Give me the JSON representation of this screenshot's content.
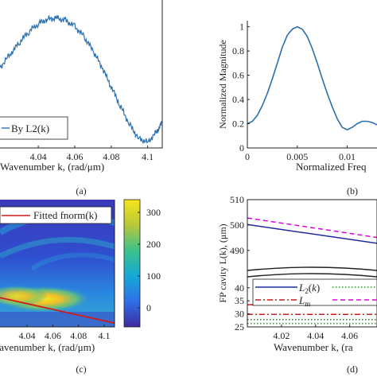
{
  "chart_data": [
    {
      "panel": "(a)",
      "type": "line",
      "xlabel": "Wavenumber k, (rad/μm)",
      "xticks": [
        "4.04",
        "4.06",
        "4.08",
        "4.1"
      ],
      "xlim": [
        4.019,
        4.108
      ],
      "ylim": [
        -1.05,
        1.05
      ],
      "legend": "By L2(k)",
      "legend_position": "bottom-left",
      "series_color": "#2a6fb0",
      "x": [
        4.019,
        4.025,
        4.03,
        4.035,
        4.04,
        4.045,
        4.05,
        4.055,
        4.06,
        4.065,
        4.07,
        4.075,
        4.08,
        4.085,
        4.09,
        4.095,
        4.1,
        4.105,
        4.108
      ],
      "y": [
        0.2,
        0.42,
        0.6,
        0.76,
        0.88,
        0.95,
        0.97,
        0.93,
        0.84,
        0.68,
        0.46,
        0.2,
        -0.1,
        -0.4,
        -0.68,
        -0.9,
        -0.96,
        -0.8,
        -0.65
      ]
    },
    {
      "panel": "(b)",
      "type": "line",
      "ylabel": "Normalized Magnitude",
      "xlabel": "Normalized Freq",
      "xticks": [
        "0",
        "0.005",
        "0.01"
      ],
      "yticks": [
        "0",
        "0.2",
        "0.4",
        "0.6",
        "0.8",
        "1"
      ],
      "xlim": [
        0,
        0.0137
      ],
      "ylim": [
        0,
        1.05
      ],
      "series_color": "#2a6fb0",
      "x": [
        0,
        0.0005,
        0.001,
        0.0015,
        0.002,
        0.0025,
        0.003,
        0.0035,
        0.004,
        0.0045,
        0.005,
        0.0055,
        0.006,
        0.0065,
        0.007,
        0.0075,
        0.008,
        0.0085,
        0.009,
        0.0095,
        0.01,
        0.0105,
        0.011,
        0.0115,
        0.012,
        0.0125,
        0.013,
        0.0137
      ],
      "y": [
        0.2,
        0.22,
        0.27,
        0.35,
        0.45,
        0.57,
        0.7,
        0.83,
        0.93,
        0.98,
        1.0,
        0.98,
        0.92,
        0.82,
        0.7,
        0.57,
        0.45,
        0.34,
        0.24,
        0.17,
        0.15,
        0.17,
        0.2,
        0.22,
        0.22,
        0.21,
        0.19,
        0.2
      ]
    },
    {
      "panel": "(c)",
      "type": "heatmap",
      "xlabel": "Wavenumber k, (rad/μm)",
      "xticks": [
        "4.04",
        "4.06",
        "4.08",
        "4.1"
      ],
      "xlim": [
        4.019,
        4.108
      ],
      "colorbar_ticks": [
        "300",
        "200",
        "100",
        "0"
      ],
      "colorbar_range": [
        -60,
        340
      ],
      "legend": "Fitted fnorm(k)",
      "line_color": "#d11a1a",
      "fitted_line": {
        "x": [
          4.019,
          4.108
        ],
        "y_fraction": [
          0.77,
          0.97
        ]
      }
    },
    {
      "panel": "(d)",
      "type": "line",
      "ylabel": "FP cavity L(k), (μm)",
      "xlabel": "Wavenumber k, (ra",
      "xticks": [
        "4.02",
        "4.04",
        "4.06"
      ],
      "yticks_upper": [
        "510",
        "500",
        "490"
      ],
      "yticks_lower": [
        "40",
        "35",
        "30",
        "25"
      ],
      "xlim": [
        4.0,
        4.076
      ],
      "ylim_upper": [
        484,
        510
      ],
      "ylim_lower": [
        25,
        43
      ],
      "legend": [
        {
          "label": "L2(k)",
          "color": "#1f2b9c",
          "style": "solid"
        },
        {
          "label": "Lm",
          "color": "#c41e1e",
          "style": "dashdot"
        },
        {
          "label": "",
          "color": "#e000e0",
          "style": "dashed"
        },
        {
          "label": "",
          "color": "#2ea12e",
          "style": "dotted"
        }
      ],
      "series": [
        {
          "color": "#1f2b9c",
          "style": "solid",
          "x": [
            4.0,
            4.076
          ],
          "y": [
            500.2,
            492.8
          ]
        },
        {
          "color": "#e000e0",
          "style": "dashed",
          "x": [
            4.0,
            4.076
          ],
          "y": [
            502.8,
            495.1
          ]
        },
        {
          "color": "#c41e1e",
          "style": "dashdot",
          "x": [
            4.0,
            4.076
          ],
          "y": [
            33.5,
            33.5
          ]
        },
        {
          "color": "#c41e1e",
          "style": "dashdot",
          "x": [
            4.0,
            4.076
          ],
          "y": [
            29.8,
            29.8
          ]
        },
        {
          "color": "#2ea12e",
          "style": "dotted",
          "x": [
            4.0,
            4.076
          ],
          "y": [
            27.8,
            27.8
          ]
        },
        {
          "color": "#2ea12e",
          "style": "dotted",
          "x": [
            4.0,
            4.076
          ],
          "y": [
            26.3,
            26.3
          ]
        }
      ]
    }
  ],
  "captions": [
    "(a)",
    "(b)",
    "(c)",
    "(d)"
  ]
}
